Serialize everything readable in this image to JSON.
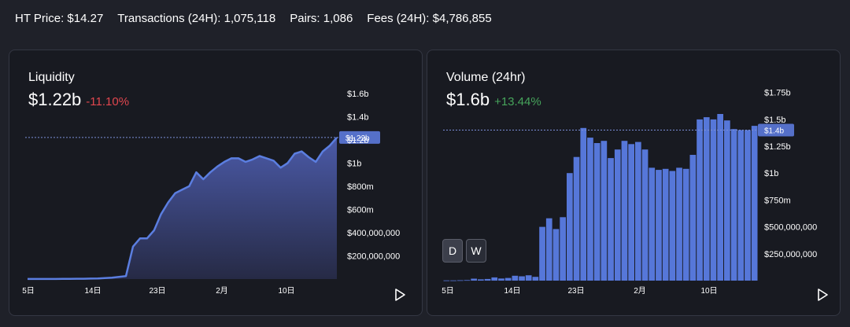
{
  "stats": {
    "ht_price": "HT Price: $14.27",
    "transactions": "Transactions (24H): 1,075,118",
    "pairs": "Pairs: 1,086",
    "fees": "Fees (24H): $4,786,855"
  },
  "liquidity": {
    "title": "Liquidity",
    "value": "$1.22b",
    "change": "-11.10%",
    "price_tag": "$1.22b"
  },
  "volume": {
    "title": "Volume (24hr)",
    "value": "$1.6b",
    "change": "+13.44%",
    "price_tag": "$1.4b",
    "toggle_day": "D",
    "toggle_week": "W"
  },
  "colors": {
    "line": "#5b7ee0",
    "bar": "#5677d9",
    "negative": "#e0464e",
    "positive": "#46a45b"
  },
  "icons": {
    "play": "play-icon"
  },
  "chart_data": [
    {
      "type": "area",
      "title": "Liquidity",
      "x_tick_labels": [
        "5日",
        "14日",
        "23日",
        "2月",
        "10日"
      ],
      "y_tick_labels": [
        "$1.6b",
        "$1.4b",
        "$1.2b",
        "$1b",
        "$800m",
        "$600m",
        "$400,000,000",
        "$200,000,000"
      ],
      "y_ticks": [
        1600000000,
        1400000000,
        1200000000,
        1000000000,
        800000000,
        600000000,
        400000000,
        200000000
      ],
      "current_value": 1220000000,
      "ylim": [
        0,
        1700000000
      ],
      "values": [
        1000000,
        1000000,
        1000000,
        1000000,
        1000000,
        2000000,
        2000000,
        3000000,
        3000000,
        4000000,
        5000000,
        8000000,
        12000000,
        18000000,
        25000000,
        280000000,
        350000000,
        350000000,
        420000000,
        560000000,
        660000000,
        740000000,
        770000000,
        800000000,
        920000000,
        860000000,
        920000000,
        970000000,
        1010000000,
        1040000000,
        1040000000,
        1010000000,
        1030000000,
        1060000000,
        1040000000,
        1020000000,
        960000000,
        1000000000,
        1080000000,
        1100000000,
        1050000000,
        1010000000,
        1100000000,
        1150000000,
        1220000000
      ]
    },
    {
      "type": "bar",
      "title": "Volume (24hr)",
      "x_tick_labels": [
        "5日",
        "14日",
        "23日",
        "2月",
        "10日"
      ],
      "y_tick_labels": [
        "$1.75b",
        "$1.5b",
        "$1.25b",
        "$1b",
        "$750m",
        "$500,000,000",
        "$250,000,000"
      ],
      "y_ticks": [
        1750000000,
        1500000000,
        1250000000,
        1000000000,
        750000000,
        500000000,
        250000000
      ],
      "current_value": 1400000000,
      "ylim": [
        0,
        1850000000
      ],
      "values": [
        2000000,
        2000000,
        4000000,
        5000000,
        18000000,
        12000000,
        15000000,
        30000000,
        20000000,
        25000000,
        45000000,
        40000000,
        50000000,
        35000000,
        500000000,
        580000000,
        480000000,
        590000000,
        1000000000,
        1150000000,
        1420000000,
        1330000000,
        1280000000,
        1300000000,
        1140000000,
        1220000000,
        1300000000,
        1270000000,
        1290000000,
        1220000000,
        1050000000,
        1030000000,
        1040000000,
        1020000000,
        1050000000,
        1040000000,
        1170000000,
        1500000000,
        1520000000,
        1500000000,
        1550000000,
        1490000000,
        1410000000,
        1400000000,
        1400000000,
        1440000000
      ]
    }
  ]
}
